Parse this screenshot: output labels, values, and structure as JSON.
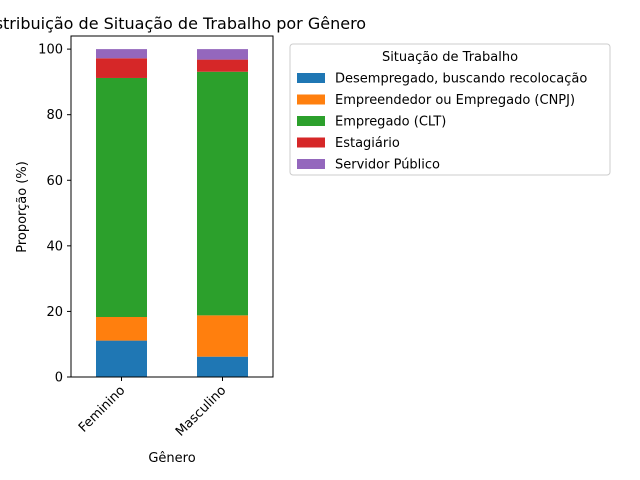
{
  "chart_data": {
    "type": "bar",
    "stacked": true,
    "title": "Distribuição de Situação de Trabalho por Gênero",
    "xlabel": "Gênero",
    "ylabel": "Proporção (%)",
    "ylim": [
      0,
      104
    ],
    "yticks": [
      0,
      20,
      40,
      60,
      80,
      100
    ],
    "categories": [
      "Feminino",
      "Masculino"
    ],
    "legend": {
      "title": "Situação de Trabalho",
      "placement": "outside-top-right"
    },
    "series": [
      {
        "name": "Desempregado, buscando recolocação",
        "color": "#1f77b4",
        "values": [
          11.1,
          6.2
        ]
      },
      {
        "name": "Empreendedor ou Empregado (CNPJ)",
        "color": "#ff7f0e",
        "values": [
          7.2,
          12.6
        ]
      },
      {
        "name": "Empregado (CLT)",
        "color": "#2ca02c",
        "values": [
          72.9,
          74.3
        ]
      },
      {
        "name": "Estagiário",
        "color": "#d62728",
        "values": [
          6.0,
          3.7
        ]
      },
      {
        "name": "Servidor Público",
        "color": "#9467bd",
        "values": [
          2.8,
          3.2
        ]
      }
    ]
  }
}
